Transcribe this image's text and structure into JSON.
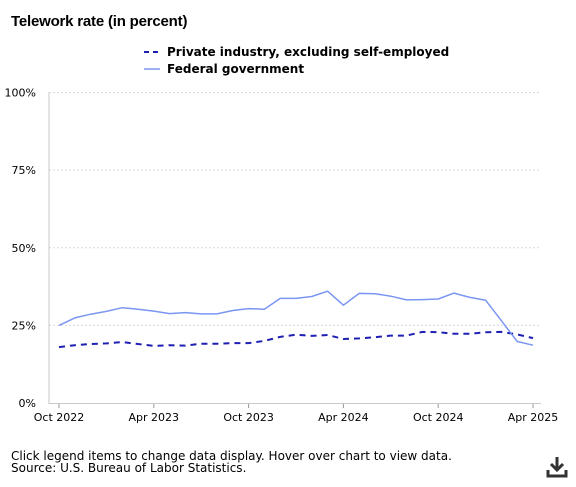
{
  "title": "Telework rate (in percent)",
  "footer": {
    "note": "Click legend items to change data display. Hover over chart to view data.",
    "source": "Source: U.S. Bureau of Labor Statistics."
  },
  "icons": {
    "download": "download-icon"
  },
  "chart_data": {
    "type": "line",
    "title": "Telework rate (in percent)",
    "xlabel": "",
    "ylabel": "",
    "ylim": [
      0,
      100
    ],
    "y_ticks": [
      "0%",
      "25%",
      "50%",
      "75%",
      "100%"
    ],
    "x_ticks": [
      "Oct 2022",
      "Apr 2023",
      "Oct 2023",
      "Apr 2024",
      "Oct 2024",
      "Apr 2025"
    ],
    "x": [
      "Oct 2022",
      "Nov 2022",
      "Dec 2022",
      "Jan 2023",
      "Feb 2023",
      "Mar 2023",
      "Apr 2023",
      "May 2023",
      "Jun 2023",
      "Jul 2023",
      "Aug 2023",
      "Sep 2023",
      "Oct 2023",
      "Nov 2023",
      "Dec 2023",
      "Jan 2024",
      "Feb 2024",
      "Mar 2024",
      "Apr 2024",
      "May 2024",
      "Jun 2024",
      "Jul 2024",
      "Aug 2024",
      "Sep 2024",
      "Oct 2024",
      "Nov 2024",
      "Dec 2024",
      "Jan 2025",
      "Feb 2025",
      "Mar 2025",
      "Apr 2025"
    ],
    "grid": true,
    "legend_position": "top",
    "series": [
      {
        "name": "Private industry, excluding self-employed",
        "color": "#1f1fb4",
        "dash": "dashed",
        "values": [
          18.0,
          18.6,
          19.0,
          19.2,
          19.6,
          19.0,
          18.4,
          18.6,
          18.5,
          19.1,
          19.1,
          19.3,
          19.3,
          20.0,
          21.3,
          22.0,
          21.6,
          21.9,
          20.6,
          20.8,
          21.2,
          21.7,
          21.7,
          22.9,
          22.8,
          22.3,
          22.3,
          22.8,
          22.9,
          22.1,
          20.9
        ]
      },
      {
        "name": "Federal government",
        "color": "#7b96f2",
        "dash": "solid",
        "values": [
          25.0,
          27.4,
          28.6,
          29.5,
          30.7,
          30.2,
          29.6,
          28.8,
          29.1,
          28.7,
          28.7,
          29.8,
          30.4,
          30.2,
          33.7,
          33.7,
          34.3,
          36.0,
          31.5,
          35.3,
          35.2,
          34.4,
          33.2,
          33.3,
          33.5,
          35.4,
          34.0,
          33.1,
          26.5,
          19.8,
          18.6
        ]
      }
    ]
  }
}
